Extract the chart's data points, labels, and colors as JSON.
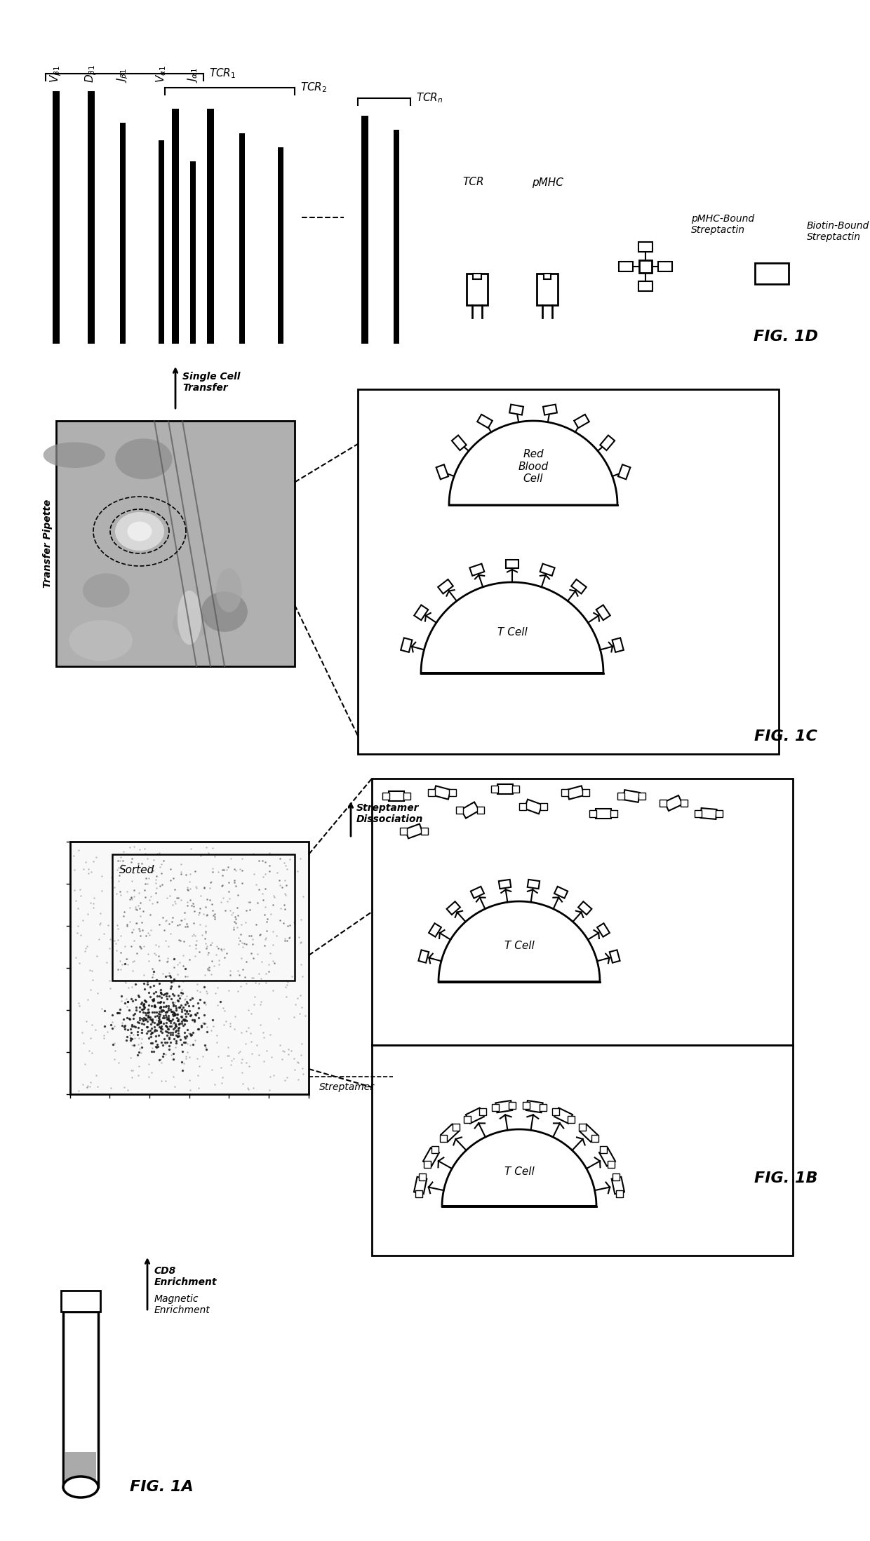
{
  "background_color": "#ffffff",
  "fig1d_label": "FIG. 1D",
  "fig1c_label": "FIG. 1C",
  "fig1b_label": "FIG. 1B",
  "fig1a_label": "FIG. 1A",
  "tcr_label": "TCR",
  "pmhc_label": "pMHC",
  "pmhc_strep_label": "pMHC-Bound\nStreptactin",
  "biotin_strep_label": "Biotin-Bound\nStreptactin",
  "tcr1_label": "TCR_1",
  "tcr2_label": "TCR_2",
  "tcrn_label": "TCR_n",
  "vb1_label": "V_{\\beta1}",
  "db1_label": "D_{\\beta1}",
  "jb1_label": "J_{\\beta1}",
  "va1_label": "V_{\\alpha1}",
  "ja1_label": "J_{\\alpha1}",
  "rbc_label": "Red\nBlood\nCell",
  "tcell_label": "T Cell",
  "sorted_label": "Sorted",
  "streptamer_label": "Streptamer",
  "streptamer_dissoc_label": "Streptamer\nDissociation",
  "single_cell_label": "Single Cell\nTransfer",
  "transfer_pipette_label": "Transfer Pipette",
  "cd8_label": "CD8\nEnrichment",
  "magnetic_label": "Magnetic\nEnrichment"
}
